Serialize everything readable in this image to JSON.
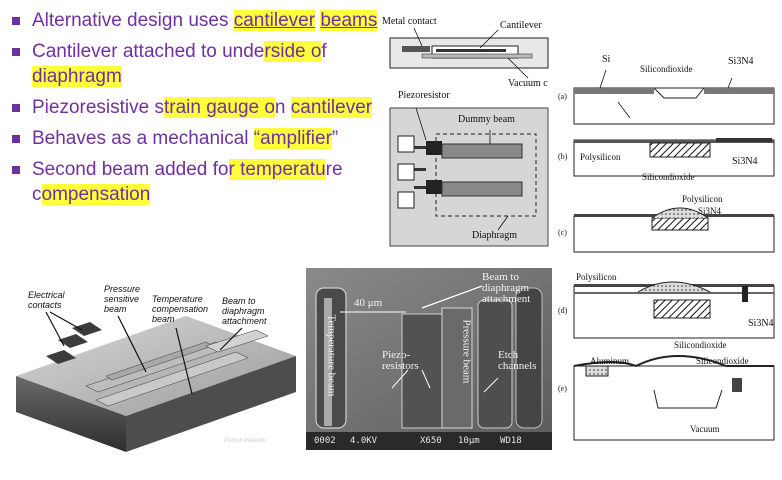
{
  "bullets": [
    {
      "parts": [
        {
          "t": "Alternative design uses "
        },
        {
          "t": "cantilever",
          "hl": true,
          "ul": true
        },
        {
          "t": " "
        },
        {
          "t": "beams",
          "hl": true,
          "ul": true
        }
      ]
    },
    {
      "parts": [
        {
          "t": "Cantilever attached to unde"
        },
        {
          "t": "rside o",
          "hl": true
        },
        {
          "t": "f "
        },
        {
          "t": "diaphragm",
          "hl": true
        }
      ]
    },
    {
      "parts": [
        {
          "t": "Piezoresistive s"
        },
        {
          "t": "train gauge o",
          "hl": true
        },
        {
          "t": "n "
        },
        {
          "t": "cantilever",
          "hl": true
        }
      ]
    },
    {
      "parts": [
        {
          "t": "Behaves as a mechanical "
        },
        {
          "t": "“amplifier",
          "hl": true
        },
        {
          "t": "”"
        }
      ]
    },
    {
      "parts": [
        {
          "t": "Second beam added fo"
        },
        {
          "t": "r temperatu",
          "hl": true
        },
        {
          "t": "re c"
        },
        {
          "t": "ompensation",
          "hl": true
        }
      ]
    }
  ],
  "top_figure": {
    "labels": {
      "metal_contact": "Metal contact",
      "cantilever": "Cantilever",
      "vacuum": "Vacuum c",
      "piezoresistor": "Piezoresistor",
      "dummy_beam": "Dummy beam",
      "diaphragm": "Diaphragm"
    }
  },
  "render_figure": {
    "labels": {
      "electrical_contacts": "Electrical contacts",
      "pressure_beam": "Pressure sensitive beam",
      "temp_beam": "Temperature compensation beam",
      "attachment": "Beam to diaphragm attachment",
      "credit": "Patrick Valiente"
    }
  },
  "sem": {
    "labels": {
      "scale": "40 μm",
      "attachment": "Beam to diaphragm attachment",
      "temperature_beam": "Temperature beam",
      "piezoresistors": "Piezo-resistors",
      "pressure_beam": "Pressure beam",
      "etch_channels": "Etch channels"
    },
    "info": {
      "id": "0002",
      "kv": "4.0KV",
      "mag": "X650",
      "scale": "10μm",
      "wd": "WD18"
    }
  },
  "process": {
    "steps": [
      "(a)",
      "(b)",
      "(c)",
      "(d)",
      "(e)"
    ],
    "labels": {
      "si": "Si",
      "sio2_a": "Silicondioxide",
      "si3n4_a": "Si3N4",
      "poly_b": "Polysilicon",
      "sio2_b": "Silicondioxide",
      "si3n4_b": "Si3N4",
      "poly_c": "Polysilicon",
      "si3n4_c": "Si3N4",
      "poly_d": "Polysilicon",
      "si3n4_d": "Si3N4",
      "sio2_d": "Silicondioxide",
      "aluminum": "Aluminum",
      "sio2_e": "Silicondioxide",
      "vacuum": "Vacuum"
    }
  }
}
